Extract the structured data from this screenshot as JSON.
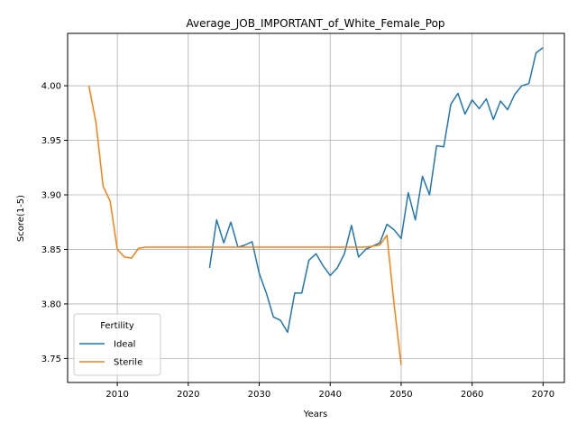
{
  "chart_data": {
    "type": "line",
    "title": "Average_JOB_IMPORTANT_of_White_Female_Pop",
    "xlabel": "Years",
    "ylabel": "Score(1-5)",
    "xlim": [
      2003,
      2073
    ],
    "ylim": [
      3.728,
      4.048
    ],
    "xticks": [
      2010,
      2020,
      2030,
      2040,
      2050,
      2060,
      2070
    ],
    "yticks": [
      3.75,
      3.8,
      3.85,
      3.9,
      3.95,
      4.0
    ],
    "ytick_labels": [
      "3.75",
      "3.80",
      "3.85",
      "3.90",
      "3.95",
      "4.00"
    ],
    "grid": true,
    "legend": {
      "title": "Fertility",
      "placement": "lower-left"
    },
    "series": [
      {
        "name": "Ideal",
        "color": "#1f77b4",
        "x": [
          2023,
          2024,
          2025,
          2026,
          2027,
          2028,
          2029,
          2030,
          2031,
          2032,
          2033,
          2034,
          2035,
          2036,
          2037,
          2038,
          2039,
          2040,
          2041,
          2042,
          2043,
          2044,
          2045,
          2046,
          2047,
          2048,
          2049,
          2050,
          2051,
          2052,
          2053,
          2054,
          2055,
          2056,
          2057,
          2058,
          2059,
          2060,
          2061,
          2062,
          2063,
          2064,
          2065,
          2066,
          2067,
          2068,
          2069,
          2070
        ],
        "y": [
          3.833,
          3.877,
          3.856,
          3.875,
          3.852,
          3.854,
          3.857,
          3.828,
          3.81,
          3.788,
          3.785,
          3.774,
          3.81,
          3.81,
          3.84,
          3.846,
          3.835,
          3.826,
          3.833,
          3.846,
          3.872,
          3.843,
          3.85,
          3.853,
          3.856,
          3.873,
          3.868,
          3.86,
          3.902,
          3.877,
          3.917,
          3.9,
          3.945,
          3.944,
          3.983,
          3.993,
          3.974,
          3.987,
          3.979,
          3.988,
          3.969,
          3.986,
          3.978,
          3.992,
          4.0,
          4.002,
          4.03,
          4.035
        ]
      },
      {
        "name": "Sterile",
        "color": "#ff7f0e",
        "x": [
          2006,
          2007,
          2008,
          2009,
          2010,
          2011,
          2012,
          2013,
          2014,
          2015,
          2016,
          2017,
          2018,
          2019,
          2020,
          2021,
          2022,
          2023,
          2024,
          2025,
          2026,
          2027,
          2028,
          2029,
          2030,
          2031,
          2032,
          2033,
          2034,
          2035,
          2036,
          2037,
          2038,
          2039,
          2040,
          2041,
          2042,
          2043,
          2044,
          2045,
          2046,
          2047,
          2048,
          2049,
          2050
        ],
        "y": [
          4.0,
          3.966,
          3.908,
          3.894,
          3.85,
          3.843,
          3.842,
          3.851,
          3.852,
          3.852,
          3.852,
          3.852,
          3.852,
          3.852,
          3.852,
          3.852,
          3.852,
          3.852,
          3.852,
          3.852,
          3.852,
          3.852,
          3.852,
          3.852,
          3.852,
          3.852,
          3.852,
          3.852,
          3.852,
          3.852,
          3.852,
          3.852,
          3.852,
          3.852,
          3.852,
          3.852,
          3.852,
          3.852,
          3.852,
          3.852,
          3.853,
          3.854,
          3.863,
          3.8,
          3.744
        ]
      }
    ]
  }
}
